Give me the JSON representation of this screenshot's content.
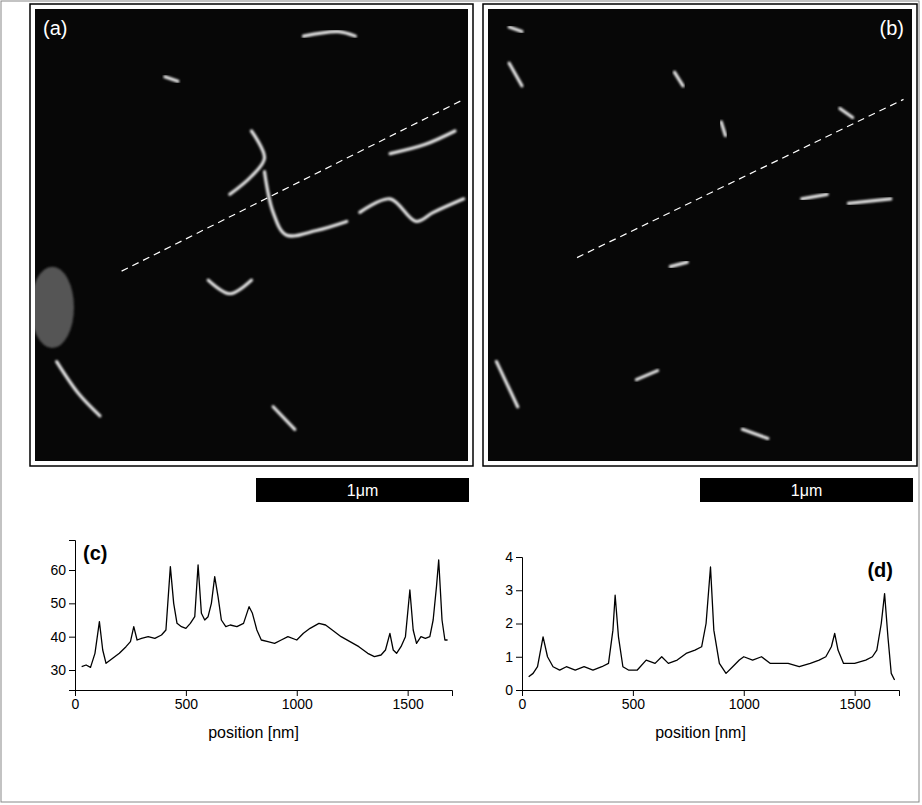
{
  "images": [
    {
      "label": "(a)",
      "scale_bar": "1μm"
    },
    {
      "label": "(b)",
      "scale_bar": "1μm"
    }
  ],
  "chart_data": [
    {
      "type": "line",
      "title": "(c)",
      "xlabel": "position [nm]",
      "color": "#000000",
      "xlim": [
        0,
        1700
      ],
      "xticks": [
        0,
        500,
        1000,
        1500
      ],
      "ylim": [
        24,
        69
      ],
      "yticks": [
        30,
        40,
        50,
        60
      ],
      "x": [
        30,
        50,
        70,
        90,
        110,
        125,
        140,
        170,
        200,
        230,
        250,
        265,
        280,
        300,
        330,
        360,
        390,
        410,
        430,
        445,
        460,
        480,
        500,
        520,
        540,
        555,
        570,
        585,
        600,
        615,
        630,
        645,
        660,
        680,
        700,
        730,
        760,
        785,
        800,
        820,
        840,
        870,
        900,
        930,
        960,
        1000,
        1030,
        1060,
        1100,
        1130,
        1160,
        1200,
        1240,
        1280,
        1320,
        1350,
        1380,
        1400,
        1420,
        1435,
        1450,
        1470,
        1490,
        1510,
        1525,
        1540,
        1560,
        1580,
        1600,
        1615,
        1630,
        1640,
        1655,
        1668,
        1680
      ],
      "values": [
        31,
        31.5,
        30.8,
        35,
        44.5,
        36,
        32,
        33.5,
        35,
        37,
        38.5,
        43,
        39,
        39.5,
        40,
        39.5,
        40.5,
        42,
        61,
        50,
        44,
        43,
        42.5,
        44,
        46,
        61.5,
        47,
        45,
        46,
        50,
        58,
        52,
        45,
        43,
        43.5,
        43,
        44,
        49,
        47,
        42,
        39,
        38.5,
        38,
        39,
        40,
        39,
        41,
        42.5,
        44,
        43.5,
        42,
        40,
        38.5,
        37,
        35,
        34,
        34.5,
        36,
        41,
        36,
        35,
        37,
        40,
        54,
        42,
        38,
        40,
        39.5,
        40,
        45,
        55,
        63,
        45,
        39,
        39
      ]
    },
    {
      "type": "line",
      "title": "(d)",
      "xlabel": "position [nm]",
      "color": "#000000",
      "xlim": [
        0,
        1700
      ],
      "xticks": [
        0,
        500,
        1000,
        1500
      ],
      "ylim": [
        0,
        4
      ],
      "yticks": [
        0,
        1,
        2,
        3,
        4
      ],
      "x": [
        30,
        50,
        70,
        95,
        115,
        140,
        170,
        200,
        240,
        280,
        320,
        360,
        390,
        410,
        420,
        435,
        455,
        480,
        520,
        560,
        600,
        630,
        660,
        700,
        740,
        780,
        810,
        830,
        850,
        865,
        890,
        920,
        950,
        980,
        1000,
        1040,
        1080,
        1120,
        1160,
        1200,
        1250,
        1300,
        1340,
        1370,
        1395,
        1410,
        1425,
        1450,
        1500,
        1550,
        1580,
        1600,
        1620,
        1635,
        1650,
        1665,
        1680
      ],
      "values": [
        0.4,
        0.5,
        0.7,
        1.6,
        1.0,
        0.7,
        0.6,
        0.7,
        0.6,
        0.7,
        0.6,
        0.7,
        0.8,
        1.8,
        2.85,
        1.6,
        0.7,
        0.6,
        0.6,
        0.9,
        0.8,
        1.0,
        0.8,
        0.9,
        1.1,
        1.2,
        1.3,
        2.0,
        3.7,
        1.8,
        0.8,
        0.5,
        0.7,
        0.9,
        1.0,
        0.9,
        1.0,
        0.8,
        0.8,
        0.8,
        0.7,
        0.8,
        0.9,
        1.0,
        1.3,
        1.7,
        1.2,
        0.8,
        0.8,
        0.9,
        1.0,
        1.2,
        2.0,
        2.9,
        1.6,
        0.5,
        0.3
      ]
    }
  ]
}
